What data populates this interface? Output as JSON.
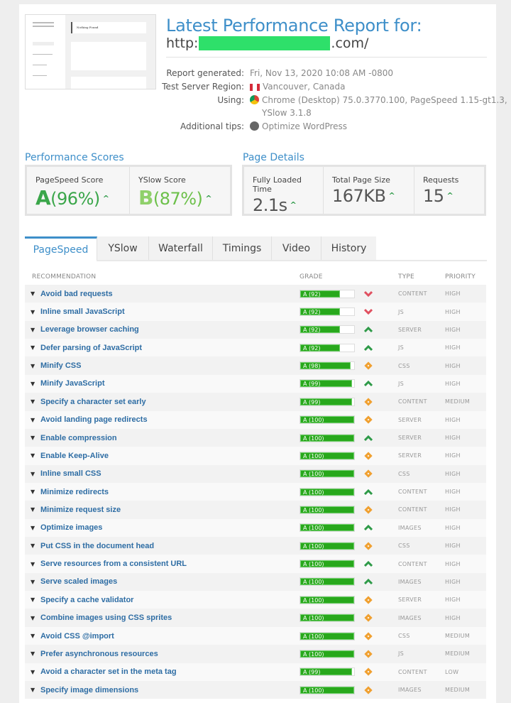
{
  "header": {
    "title": "Latest Performance Report for:",
    "url_prefix": "http:",
    "url_suffix": ".com/"
  },
  "thumbnail": {
    "caption": "Nothing Found"
  },
  "meta": [
    {
      "label": "Report generated:",
      "value": "Fri, Nov 13, 2020 10:08 AM -0800",
      "icon": ""
    },
    {
      "label": "Test Server Region:",
      "value": "Vancouver, Canada",
      "icon": "canada-flag-icon"
    },
    {
      "label": "Using:",
      "value": "Chrome (Desktop) 75.0.3770.100, PageSpeed 1.15-gt1.3,",
      "value2": "YSlow 3.1.8",
      "icon": "chrome-icon"
    },
    {
      "label": "Additional tips:",
      "value": "Optimize WordPress",
      "icon": "wordpress-icon"
    }
  ],
  "performance": {
    "heading": "Performance Scores",
    "pagespeed": {
      "label": "PageSpeed Score",
      "grade": "A",
      "pct": "(96%)"
    },
    "yslow": {
      "label": "YSlow Score",
      "grade": "B",
      "pct": "(87%)"
    }
  },
  "details": {
    "heading": "Page Details",
    "load": {
      "label": "Fully Loaded Time",
      "value": "2.1s"
    },
    "size": {
      "label": "Total Page Size",
      "value": "167KB"
    },
    "requests": {
      "label": "Requests",
      "value": "15"
    }
  },
  "tabs": [
    "PageSpeed",
    "YSlow",
    "Waterfall",
    "Timings",
    "Video",
    "History"
  ],
  "table": {
    "headers": {
      "rec": "RECOMMENDATION",
      "grade": "GRADE",
      "type": "TYPE",
      "priority": "PRIORITY"
    },
    "rows": [
      {
        "name": "Avoid bad requests",
        "grade": "A (92)",
        "score": 92,
        "trend": "down",
        "type": "CONTENT",
        "priority": "HIGH"
      },
      {
        "name": "Inline small JavaScript",
        "grade": "A (92)",
        "score": 92,
        "trend": "down",
        "type": "JS",
        "priority": "HIGH"
      },
      {
        "name": "Leverage browser caching",
        "grade": "A (92)",
        "score": 92,
        "trend": "up",
        "type": "SERVER",
        "priority": "HIGH"
      },
      {
        "name": "Defer parsing of JavaScript",
        "grade": "A (92)",
        "score": 92,
        "trend": "up",
        "type": "JS",
        "priority": "HIGH"
      },
      {
        "name": "Minify CSS",
        "grade": "A (98)",
        "score": 98,
        "trend": "same",
        "type": "CSS",
        "priority": "HIGH"
      },
      {
        "name": "Minify JavaScript",
        "grade": "A (99)",
        "score": 99,
        "trend": "up",
        "type": "JS",
        "priority": "HIGH"
      },
      {
        "name": "Specify a character set early",
        "grade": "A (99)",
        "score": 99,
        "trend": "same",
        "type": "CONTENT",
        "priority": "MEDIUM"
      },
      {
        "name": "Avoid landing page redirects",
        "grade": "A (100)",
        "score": 100,
        "trend": "same",
        "type": "SERVER",
        "priority": "HIGH"
      },
      {
        "name": "Enable compression",
        "grade": "A (100)",
        "score": 100,
        "trend": "up",
        "type": "SERVER",
        "priority": "HIGH"
      },
      {
        "name": "Enable Keep-Alive",
        "grade": "A (100)",
        "score": 100,
        "trend": "same",
        "type": "SERVER",
        "priority": "HIGH"
      },
      {
        "name": "Inline small CSS",
        "grade": "A (100)",
        "score": 100,
        "trend": "same",
        "type": "CSS",
        "priority": "HIGH"
      },
      {
        "name": "Minimize redirects",
        "grade": "A (100)",
        "score": 100,
        "trend": "up",
        "type": "CONTENT",
        "priority": "HIGH"
      },
      {
        "name": "Minimize request size",
        "grade": "A (100)",
        "score": 100,
        "trend": "same",
        "type": "CONTENT",
        "priority": "HIGH"
      },
      {
        "name": "Optimize images",
        "grade": "A (100)",
        "score": 100,
        "trend": "up",
        "type": "IMAGES",
        "priority": "HIGH"
      },
      {
        "name": "Put CSS in the document head",
        "grade": "A (100)",
        "score": 100,
        "trend": "same",
        "type": "CSS",
        "priority": "HIGH"
      },
      {
        "name": "Serve resources from a consistent URL",
        "grade": "A (100)",
        "score": 100,
        "trend": "up",
        "type": "CONTENT",
        "priority": "HIGH"
      },
      {
        "name": "Serve scaled images",
        "grade": "A (100)",
        "score": 100,
        "trend": "up",
        "type": "IMAGES",
        "priority": "HIGH"
      },
      {
        "name": "Specify a cache validator",
        "grade": "A (100)",
        "score": 100,
        "trend": "same",
        "type": "SERVER",
        "priority": "HIGH"
      },
      {
        "name": "Combine images using CSS sprites",
        "grade": "A (100)",
        "score": 100,
        "trend": "same",
        "type": "IMAGES",
        "priority": "HIGH"
      },
      {
        "name": "Avoid CSS @import",
        "grade": "A (100)",
        "score": 100,
        "trend": "same",
        "type": "CSS",
        "priority": "MEDIUM"
      },
      {
        "name": "Prefer asynchronous resources",
        "grade": "A (100)",
        "score": 100,
        "trend": "same",
        "type": "JS",
        "priority": "MEDIUM"
      },
      {
        "name": "Avoid a character set in the meta tag",
        "grade": "A (99)",
        "score": 99,
        "trend": "same",
        "type": "CONTENT",
        "priority": "LOW"
      },
      {
        "name": "Specify image dimensions",
        "grade": "A (100)",
        "score": 100,
        "trend": "same",
        "type": "IMAGES",
        "priority": "MEDIUM"
      }
    ]
  },
  "colors": {
    "accent": "#3e8fc9",
    "grade_bar": "#28a81c",
    "up": "#2e9a48",
    "down": "#e05060",
    "same": "#f0a030"
  }
}
